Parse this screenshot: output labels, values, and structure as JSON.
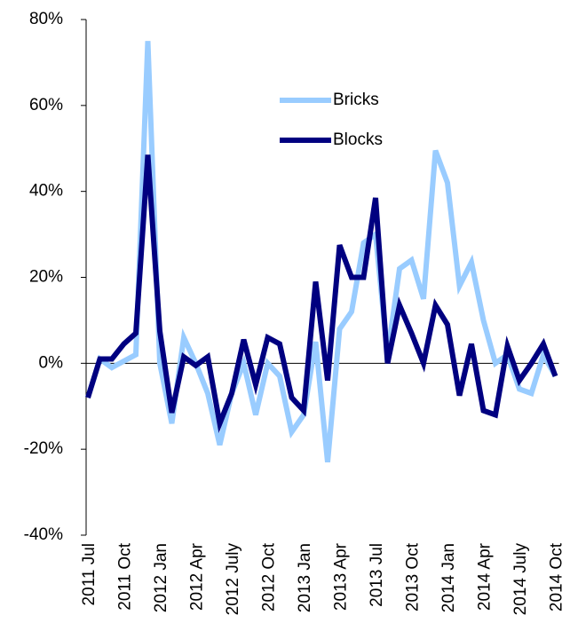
{
  "chart_data": {
    "type": "line",
    "categories": [
      "2011 Jul",
      null,
      null,
      "2011 Oct",
      null,
      null,
      "2012 Jan",
      null,
      null,
      "2012 Apr",
      null,
      null,
      "2012 July",
      null,
      null,
      "2012 Oct",
      null,
      null,
      "2013 Jan",
      null,
      null,
      "2013 Apr",
      null,
      null,
      "2013 Jul",
      null,
      null,
      "2013 Oct",
      null,
      null,
      "2014 Jan",
      null,
      null,
      "2014 Apr",
      null,
      null,
      "2014 July",
      null,
      null,
      "2014 Oct"
    ],
    "series": [
      {
        "name": "Bricks",
        "color": "#99ccff",
        "values": [
          -8,
          1,
          -1,
          0.5,
          2,
          75,
          0,
          -14,
          6,
          0,
          -7,
          -19,
          -7,
          0,
          -12,
          0,
          -3,
          -16,
          -12,
          5,
          -23,
          8,
          12,
          28,
          30,
          2,
          22,
          24,
          15,
          49.5,
          42,
          18,
          23.5,
          10,
          0,
          2,
          -6,
          -7,
          2,
          -3
        ]
      },
      {
        "name": "Blocks",
        "color": "#000080",
        "values": [
          -8,
          1,
          1,
          4.5,
          7,
          48.5,
          7.5,
          -11.5,
          1.5,
          -0.5,
          1.5,
          -14,
          -7,
          5.5,
          -5,
          6,
          4.5,
          -8,
          -11,
          19,
          -4,
          27.5,
          20,
          20,
          38.5,
          0,
          13.5,
          7,
          0,
          13.5,
          9,
          -7.5,
          4.5,
          -11,
          -12,
          4,
          -4,
          0,
          4.5,
          -3
        ]
      }
    ],
    "ylim": [
      -40,
      80
    ],
    "yticks": [
      {
        "value": -40,
        "label": "-40%"
      },
      {
        "value": -20,
        "label": "-20%"
      },
      {
        "value": 0,
        "label": "0%"
      },
      {
        "value": 20,
        "label": "20%"
      },
      {
        "value": 40,
        "label": "40%"
      },
      {
        "value": 60,
        "label": "60%"
      },
      {
        "value": 80,
        "label": "80%"
      }
    ]
  }
}
